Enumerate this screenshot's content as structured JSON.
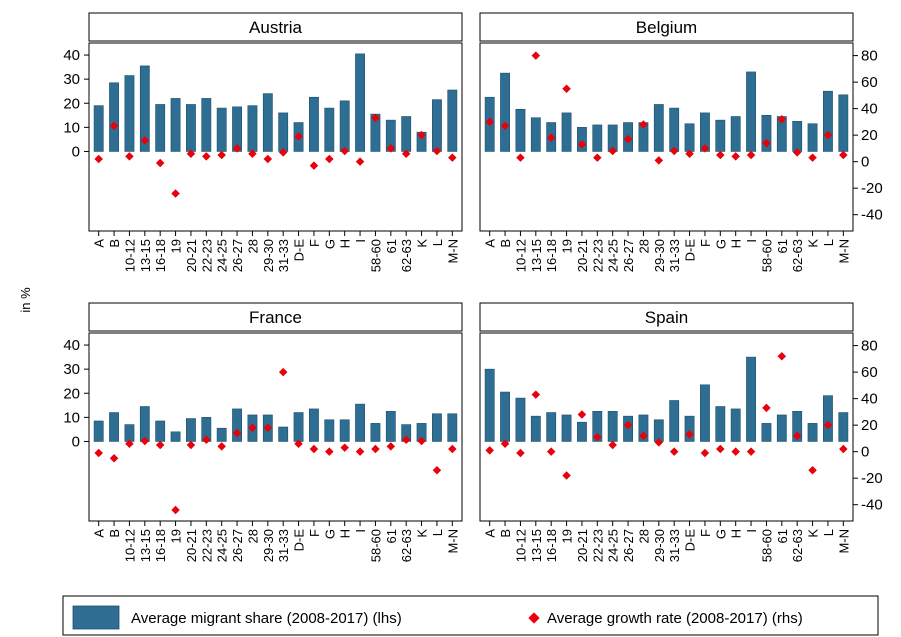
{
  "colors": {
    "bar": "#2e6e93",
    "bar_stroke": "#1f4e6b",
    "dot": "#e8000b"
  },
  "chart_data": {
    "type": "bar",
    "ylabel": "in %",
    "categories": [
      "A",
      "B",
      "10-12",
      "13-15",
      "16-18",
      "19",
      "20-21",
      "22-23",
      "24-25",
      "26-27",
      "28",
      "29-30",
      "31-33",
      "D-E",
      "F",
      "G",
      "H",
      "I",
      "58-60",
      "61",
      "62-63",
      "K",
      "L",
      "M-N"
    ],
    "left_ticks": [
      0,
      10,
      20,
      30,
      40
    ],
    "right_ticks": [
      80,
      60,
      40,
      20,
      0,
      -20,
      -40
    ],
    "left_range": [
      -33,
      45
    ],
    "right_range": [
      -52.3,
      89.5
    ],
    "legend": {
      "bar_label": "Average migrant share (2008-2017) (lhs)",
      "dot_label": "Average growth rate (2008-2017) (rhs)"
    },
    "panels": [
      {
        "title": "Austria",
        "series": [
          {
            "name": "Average migrant share (2008-2017) (lhs)",
            "values": [
              19,
              28.5,
              31.5,
              35.5,
              19.5,
              22,
              19.5,
              22,
              18,
              18.5,
              19,
              24,
              16,
              12,
              22.5,
              18,
              21,
              40.5,
              15.5,
              13,
              14.5,
              8,
              21.5,
              25.5
            ]
          },
          {
            "name": "Average growth rate (2008-2017) (rhs)",
            "values": [
              2,
              27,
              4,
              16,
              -1,
              -24,
              6,
              4,
              5,
              10,
              6,
              2,
              7,
              19,
              -3,
              2,
              8,
              0,
              33,
              10,
              6,
              20,
              8,
              3
            ]
          }
        ]
      },
      {
        "title": "Belgium",
        "series": [
          {
            "name": "Average migrant share (2008-2017) (lhs)",
            "values": [
              22.5,
              32.5,
              17.5,
              14,
              12,
              16,
              10,
              11,
              11,
              12,
              12,
              19.5,
              18,
              11.5,
              16,
              13,
              14.5,
              33,
              15,
              14.5,
              12.5,
              11.5,
              25,
              23.5
            ]
          },
          {
            "name": "Average growth rate (2008-2017) (rhs)",
            "values": [
              30,
              27,
              3,
              80,
              18,
              55,
              13,
              3,
              8,
              17,
              28,
              1,
              8,
              6,
              10,
              5,
              4,
              5,
              14,
              32,
              7,
              3,
              20,
              5
            ]
          }
        ]
      },
      {
        "title": "France",
        "series": [
          {
            "name": "Average migrant share (2008-2017) (lhs)",
            "values": [
              8.5,
              12,
              7,
              14.5,
              8.5,
              4,
              9.5,
              10,
              5.5,
              13.5,
              11,
              11,
              6,
              12,
              13.5,
              9,
              9,
              15.5,
              7.5,
              12.5,
              7,
              7.5,
              11.5,
              11.5
            ]
          },
          {
            "name": "Average growth rate (2008-2017) (rhs)",
            "values": [
              -1,
              -5,
              6,
              8,
              5,
              -44,
              5,
              9,
              4,
              14,
              18,
              18,
              60,
              6,
              2,
              0,
              3,
              0,
              2,
              4,
              9,
              8,
              -14,
              2
            ]
          }
        ]
      },
      {
        "title": "Spain",
        "series": [
          {
            "name": "Average migrant share (2008-2017) (lhs)",
            "values": [
              30,
              20.5,
              18,
              10.5,
              12,
              11,
              8,
              12.5,
              12.5,
              10.5,
              11,
              9,
              17,
              10.5,
              23.5,
              14.5,
              13.5,
              35,
              7.5,
              11,
              12.5,
              7.5,
              19,
              12
            ]
          },
          {
            "name": "Average growth rate (2008-2017) (rhs)",
            "values": [
              1,
              6,
              -1,
              43,
              0,
              -18,
              28,
              11,
              5,
              20,
              12,
              7,
              0,
              13,
              -1,
              2,
              0,
              0,
              33,
              72,
              12,
              -14,
              20,
              2
            ]
          }
        ]
      }
    ]
  }
}
